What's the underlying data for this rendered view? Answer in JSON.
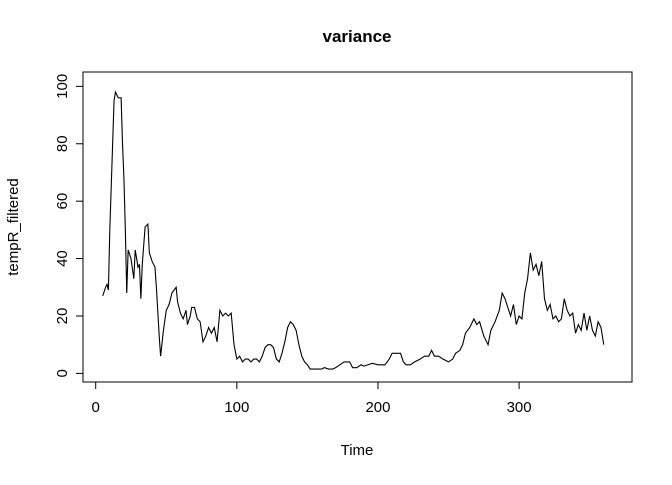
{
  "chart_data": {
    "type": "line",
    "title": "variance",
    "x_label": "Time",
    "y_label": "tempR_filtered",
    "color": "#000000",
    "x": [
      5,
      7,
      8,
      9,
      10,
      12,
      13,
      14,
      15,
      16,
      18,
      19,
      20,
      21,
      22,
      23,
      25,
      27,
      28,
      30,
      31,
      32,
      33,
      35,
      37,
      38,
      40,
      42,
      43,
      45,
      46,
      48,
      50,
      52,
      54,
      57,
      58,
      60,
      62,
      64,
      65,
      67,
      68,
      70,
      72,
      74,
      76,
      78,
      80,
      82,
      84,
      86,
      88,
      90,
      92,
      94,
      96,
      98,
      100,
      102,
      104,
      106,
      108,
      110,
      112,
      114,
      116,
      118,
      120,
      122,
      124,
      126,
      128,
      130,
      132,
      134,
      136,
      138,
      140,
      142,
      144,
      146,
      148,
      150,
      152,
      155,
      158,
      160,
      162,
      165,
      168,
      170,
      173,
      176,
      180,
      182,
      185,
      188,
      190,
      193,
      196,
      200,
      205,
      208,
      210,
      213,
      216,
      218,
      220,
      223,
      226,
      230,
      233,
      236,
      238,
      240,
      243,
      246,
      250,
      253,
      255,
      258,
      260,
      262,
      265,
      268,
      270,
      272,
      275,
      278,
      280,
      283,
      286,
      288,
      290,
      292,
      294,
      296,
      298,
      300,
      302,
      304,
      306,
      308,
      310,
      312,
      314,
      316,
      318,
      320,
      322,
      324,
      326,
      328,
      330,
      332,
      334,
      336,
      338,
      340,
      342,
      344,
      346,
      348,
      350,
      352,
      354,
      356,
      358,
      360
    ],
    "values": [
      27,
      30,
      31,
      29,
      50,
      80,
      95,
      98,
      97,
      96,
      96,
      80,
      68,
      50,
      28,
      43,
      40,
      33,
      43,
      37,
      38,
      26,
      38,
      51,
      52,
      42,
      39,
      37,
      30,
      13,
      6,
      15,
      22,
      24,
      28,
      30,
      25,
      21,
      19,
      22,
      17,
      20,
      23,
      23,
      19,
      18,
      11,
      13,
      16,
      14,
      16,
      11,
      22,
      20,
      21,
      20,
      21,
      10,
      5,
      6,
      4,
      5,
      5,
      4,
      5,
      5,
      4,
      6,
      9,
      10,
      10,
      9,
      5,
      4,
      7,
      11,
      16,
      18,
      17,
      15,
      10,
      6,
      4,
      3,
      1.5,
      1.5,
      1.5,
      1.5,
      2,
      1.5,
      1.5,
      2,
      3,
      4,
      4,
      2,
      2,
      3,
      2.5,
      3,
      3.5,
      3,
      3,
      5,
      7,
      7,
      7,
      4,
      3,
      3,
      4,
      5,
      6,
      6,
      8,
      6,
      6,
      5,
      4,
      5,
      7,
      8,
      10,
      14,
      16,
      19,
      17,
      18,
      13,
      10,
      15,
      18,
      22,
      28,
      26,
      23,
      20,
      24,
      17,
      20,
      19,
      28,
      33,
      42,
      36,
      38,
      34,
      39,
      26,
      22,
      24,
      19,
      20,
      18,
      19,
      26,
      22,
      20,
      21,
      14,
      17,
      15,
      21,
      15,
      20,
      15,
      13,
      18,
      16,
      10
    ],
    "xlim": [
      -9,
      380
    ],
    "ylim": [
      -3,
      105
    ],
    "xticks": [
      0,
      100,
      200,
      300
    ],
    "yticks": [
      0,
      20,
      40,
      60,
      80,
      100
    ]
  }
}
